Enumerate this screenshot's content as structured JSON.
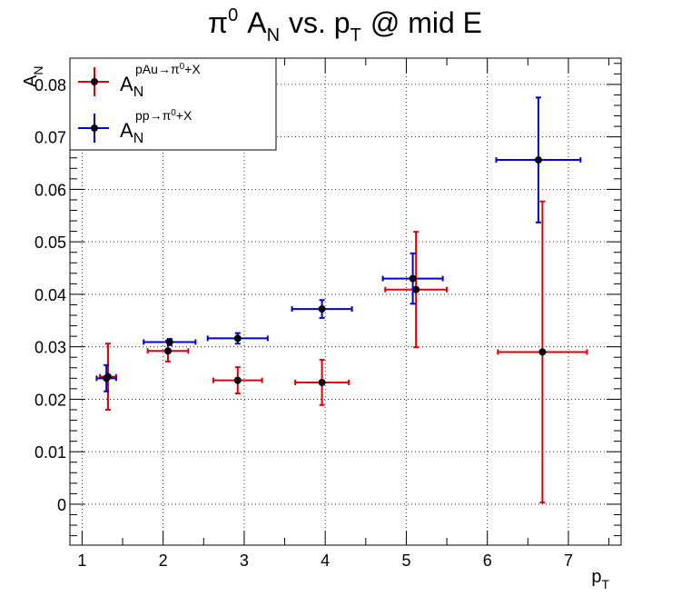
{
  "chart_data": {
    "type": "scatter",
    "title": {
      "main": "π",
      "sup": "0",
      "a": "A",
      "a_sub": "N",
      "mid": "vs. p",
      "p_sub": "T",
      "end": "@ mid E"
    },
    "xlabel": {
      "main": "p",
      "sub": "T"
    },
    "ylabel": {
      "main": "A",
      "sub": "N"
    },
    "xlim": [
      0.85,
      7.65
    ],
    "ylim": [
      -0.0078,
      0.085
    ],
    "x_ticks": [
      1,
      2,
      3,
      4,
      5,
      6,
      7
    ],
    "y_ticks": [
      0,
      0.01,
      0.02,
      0.03,
      0.04,
      0.05,
      0.06,
      0.07,
      0.08
    ],
    "y_tick_labels": [
      "0",
      "0.01",
      "0.02",
      "0.03",
      "0.04",
      "0.05",
      "0.06",
      "0.07",
      "0.08"
    ],
    "grid": true,
    "legend_position": "top-left",
    "series": [
      {
        "name": "pAu→π0+X",
        "legend": {
          "main": "A",
          "sub": "N",
          "sup": "pAu→π",
          "sup_zero": "0",
          "sup_end": "+X"
        },
        "color": "#e00000",
        "points": [
          {
            "x": 1.32,
            "y": 0.0243,
            "xerr": 0.1,
            "yerr": 0.0063
          },
          {
            "x": 2.06,
            "y": 0.0292,
            "xerr": 0.25,
            "yerr": 0.002
          },
          {
            "x": 2.92,
            "y": 0.0236,
            "xerr": 0.3,
            "yerr": 0.0025
          },
          {
            "x": 3.96,
            "y": 0.0232,
            "xerr": 0.33,
            "yerr": 0.0043
          },
          {
            "x": 5.12,
            "y": 0.0409,
            "xerr": 0.38,
            "yerr": 0.011
          },
          {
            "x": 6.68,
            "y": 0.029,
            "xerr": 0.55,
            "yerr": 0.0287
          }
        ]
      },
      {
        "name": "pp→π0+X",
        "legend": {
          "main": "A",
          "sub": "N",
          "sup": "pp→π",
          "sup_zero": "0",
          "sup_end": "+X"
        },
        "color": "#0000d0",
        "points": [
          {
            "x": 1.3,
            "y": 0.024,
            "xerr": 0.12,
            "yerr": 0.0025
          },
          {
            "x": 2.08,
            "y": 0.0309,
            "xerr": 0.32,
            "yerr": 0.0006
          },
          {
            "x": 2.92,
            "y": 0.0316,
            "xerr": 0.37,
            "yerr": 0.001
          },
          {
            "x": 3.96,
            "y": 0.0372,
            "xerr": 0.37,
            "yerr": 0.0017
          },
          {
            "x": 5.08,
            "y": 0.043,
            "xerr": 0.37,
            "yerr": 0.0048
          },
          {
            "x": 6.63,
            "y": 0.0656,
            "xerr": 0.52,
            "yerr": 0.0119
          }
        ]
      }
    ]
  }
}
